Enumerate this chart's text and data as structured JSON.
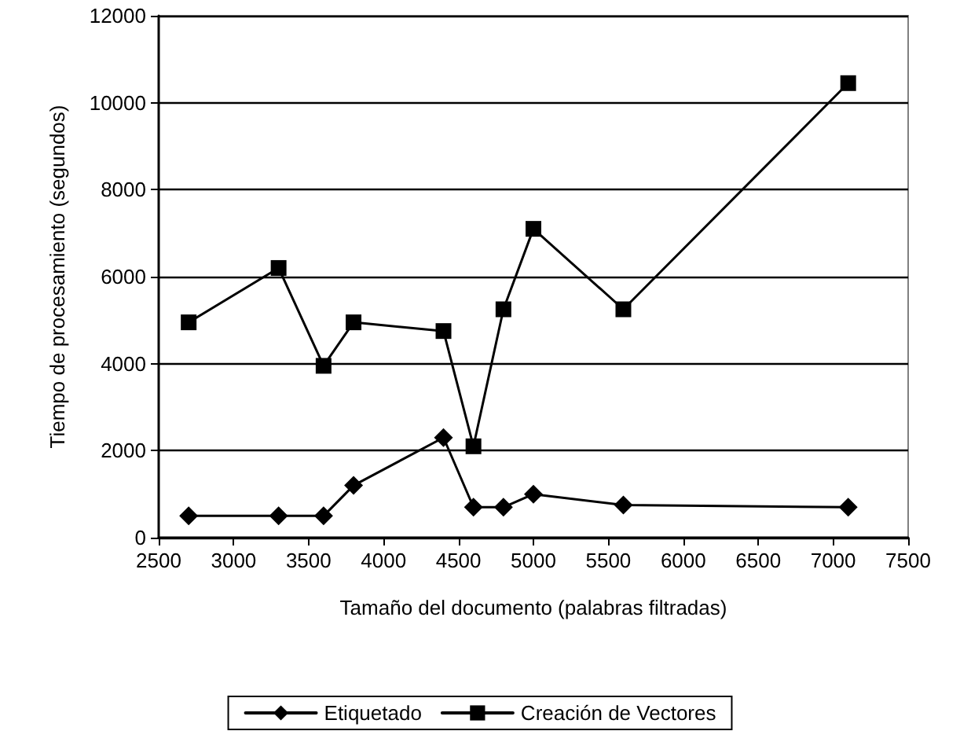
{
  "chart_data": {
    "type": "line",
    "xlabel": "Tamaño del documento (palabras filtradas)",
    "ylabel": "Tiempo de procesamiento (segundos)",
    "x": [
      2700,
      3300,
      3600,
      3800,
      4400,
      4600,
      4800,
      5000,
      5600,
      7100
    ],
    "series": [
      {
        "name": "Etiquetado",
        "color": "#000000",
        "marker": "diamond",
        "values": [
          500,
          500,
          500,
          1200,
          2300,
          700,
          700,
          1000,
          750,
          700
        ]
      },
      {
        "name": "Creación de Vectores",
        "color": "#000000",
        "marker": "square",
        "values": [
          4950,
          6200,
          3950,
          4950,
          4750,
          2100,
          5250,
          7100,
          5250,
          10450
        ]
      }
    ],
    "xlim": [
      2500,
      7500
    ],
    "xticks": [
      2500,
      3000,
      3500,
      4000,
      4500,
      5000,
      5500,
      6000,
      6500,
      7000,
      7500
    ],
    "ylim": [
      0,
      12000
    ],
    "yticks": [
      0,
      2000,
      4000,
      6000,
      8000,
      10000,
      12000
    ],
    "grid": "y",
    "legend": "bottom",
    "line_style": "solid"
  }
}
